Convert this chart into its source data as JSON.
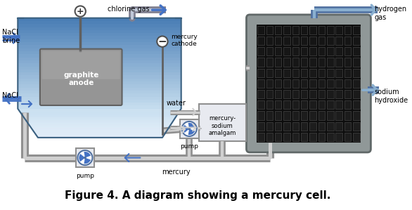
{
  "title": "Figure 4. A diagram showing a mercury cell.",
  "title_fontsize": 11,
  "labels": {
    "nacl_brine": "NaCl\nbrine",
    "nacl": "NaCl",
    "chlorine_gas": "chlorine gas",
    "hydrogen_gas": "hydrogen\ngas",
    "sodium_hydroxide": "sodium\nhydroxide",
    "graphite_anode": "graphite\nanode",
    "mercury_cathode": "mercury\ncathode",
    "water": "water",
    "mercury_sodium_amalgam": "mercury-\nsodium\namalgam",
    "pump1": "pump",
    "pump2": "pump",
    "mercury": "mercury"
  },
  "colors": {
    "cell_blue_top": "#4a7eb5",
    "cell_blue_bottom": "#c8dff0",
    "cell_border": "#3a6080",
    "pipe_outer": "#808090",
    "pipe_inner": "#b8c0d0",
    "pipe_highlight": "#d0d8e8",
    "graphite_fill": "#909090",
    "graphite_border": "#606060",
    "grid_frame": "#909898",
    "grid_bg": "#111111",
    "grid_cell": "#0a0a0a",
    "grid_line": "#707070",
    "pump_fill": "#ffffff",
    "pump_border": "#5070a0",
    "pump_blade": "#4472c4",
    "arrow_color": "#4472c4",
    "pipe_arrow": "#808090",
    "white": "#ffffff",
    "black": "#000000",
    "mercury_layer": "#c8c8d8",
    "cell_bottom_fill": "#d8e4f0"
  }
}
